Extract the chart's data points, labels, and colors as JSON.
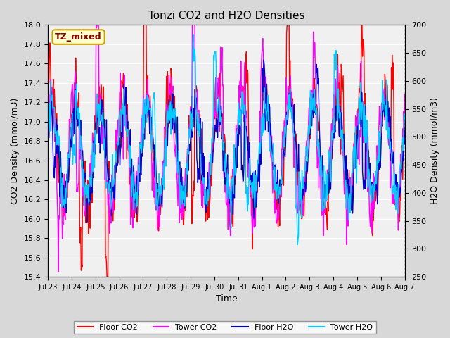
{
  "title": "Tonzi CO2 and H2O Densities",
  "xlabel": "Time",
  "ylabel_left": "CO2 Density (mmol/m3)",
  "ylabel_right": "H2O Density (mmol/m3)",
  "co2_ylim": [
    15.4,
    18.0
  ],
  "h2o_ylim": [
    250,
    700
  ],
  "co2_yticks": [
    15.4,
    15.6,
    15.8,
    16.0,
    16.2,
    16.4,
    16.6,
    16.8,
    17.0,
    17.2,
    17.4,
    17.6,
    17.8,
    18.0
  ],
  "h2o_yticks": [
    250,
    300,
    350,
    400,
    450,
    500,
    550,
    600,
    650,
    700
  ],
  "xtick_positions": [
    0,
    1,
    2,
    3,
    4,
    5,
    6,
    7,
    8,
    9,
    10,
    11,
    12,
    13,
    14,
    15
  ],
  "xtick_labels": [
    "Jul 23",
    "Jul 24",
    "Jul 25",
    "Jul 26",
    "Jul 27",
    "Jul 28",
    "Jul 29",
    "Jul 30",
    "Jul 31",
    "Aug 1",
    "Aug 2",
    "Aug 3",
    "Aug 4",
    "Aug 5",
    "Aug 6",
    "Aug 7"
  ],
  "n_days": 15,
  "annotation_text": "TZ_mixed",
  "annotation_bg": "#ffffcc",
  "annotation_border": "#c8a000",
  "floor_co2_color": "#ff0000",
  "tower_co2_color": "#ff00ff",
  "floor_h2o_color": "#0000cc",
  "tower_h2o_color": "#00ccff",
  "line_width": 1.0,
  "legend_labels": [
    "Floor CO2",
    "Tower CO2",
    "Floor H2O",
    "Tower H2O"
  ],
  "fig_facecolor": "#d8d8d8",
  "plot_bg": "#f0f0f0"
}
